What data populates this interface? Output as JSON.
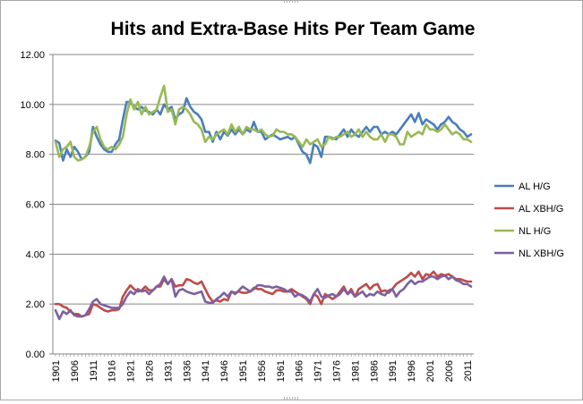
{
  "chart_data": {
    "type": "line",
    "title": "Hits and Extra-Base Hits Per Team Game",
    "xlabel": "",
    "ylabel": "",
    "ylim": [
      0,
      12
    ],
    "y_ticks": [
      "0.00",
      "2.00",
      "4.00",
      "6.00",
      "8.00",
      "10.00",
      "12.00"
    ],
    "x_tick_labels": [
      "1901",
      "1906",
      "1911",
      "1916",
      "1921",
      "1926",
      "1931",
      "1936",
      "1941",
      "1946",
      "1951",
      "1956",
      "1961",
      "1966",
      "1971",
      "1976",
      "1981",
      "1986",
      "1991",
      "1996",
      "2001",
      "2006",
      "2011"
    ],
    "grid": "horizontal",
    "legend_position": "right",
    "x_start": 1901,
    "x_end": 2012,
    "series": [
      {
        "name": "AL H/G",
        "color": "#4a7ebb",
        "values": [
          8.55,
          8.45,
          7.75,
          8.2,
          7.9,
          8.3,
          8.1,
          7.8,
          7.9,
          8.1,
          9.1,
          8.7,
          8.4,
          8.2,
          8.1,
          8.1,
          8.4,
          8.6,
          9.4,
          10.1,
          10.1,
          9.9,
          9.8,
          9.9,
          9.75,
          9.7,
          9.6,
          9.8,
          9.6,
          10.0,
          9.8,
          9.9,
          9.4,
          9.6,
          9.7,
          10.25,
          9.9,
          9.7,
          9.6,
          9.4,
          8.9,
          8.9,
          8.5,
          8.9,
          8.6,
          8.9,
          8.75,
          9.0,
          8.8,
          9.0,
          8.8,
          9.0,
          8.9,
          9.3,
          8.9,
          8.9,
          8.6,
          8.7,
          8.8,
          8.7,
          8.6,
          8.65,
          8.7,
          8.6,
          8.7,
          8.4,
          8.1,
          8.0,
          7.65,
          8.4,
          8.3,
          7.9,
          8.7,
          8.7,
          8.65,
          8.6,
          8.8,
          9.0,
          8.7,
          9.0,
          8.8,
          8.7,
          8.9,
          9.1,
          8.9,
          9.1,
          9.1,
          8.8,
          8.9,
          8.8,
          8.9,
          8.8,
          9.0,
          9.2,
          9.4,
          9.6,
          9.3,
          9.65,
          9.2,
          9.4,
          9.3,
          9.2,
          9.0,
          9.2,
          9.3,
          9.5,
          9.3,
          9.2,
          9.0,
          8.9,
          8.7,
          8.8
        ]
      },
      {
        "name": "AL XBH/G",
        "color": "#be4b48",
        "values": [
          2.0,
          2.0,
          1.9,
          1.85,
          1.7,
          1.6,
          1.6,
          1.5,
          1.55,
          1.6,
          2.0,
          1.95,
          1.85,
          1.75,
          1.7,
          1.75,
          1.75,
          1.8,
          2.3,
          2.55,
          2.75,
          2.6,
          2.5,
          2.55,
          2.7,
          2.55,
          2.55,
          2.7,
          2.7,
          3.0,
          2.8,
          3.0,
          2.7,
          2.75,
          2.75,
          3.0,
          2.95,
          2.85,
          2.8,
          2.9,
          2.6,
          2.3,
          2.1,
          2.15,
          2.1,
          2.2,
          2.15,
          2.5,
          2.45,
          2.5,
          2.45,
          2.45,
          2.5,
          2.65,
          2.6,
          2.6,
          2.5,
          2.45,
          2.4,
          2.55,
          2.55,
          2.5,
          2.5,
          2.6,
          2.5,
          2.4,
          2.3,
          2.2,
          2.0,
          2.4,
          2.3,
          2.0,
          2.4,
          2.3,
          2.2,
          2.3,
          2.5,
          2.7,
          2.4,
          2.6,
          2.3,
          2.6,
          2.7,
          2.8,
          2.6,
          2.75,
          2.8,
          2.5,
          2.55,
          2.45,
          2.6,
          2.8,
          2.9,
          3.0,
          3.1,
          3.25,
          3.1,
          3.3,
          3.0,
          3.2,
          3.15,
          3.3,
          3.1,
          3.2,
          3.15,
          3.2,
          3.1,
          3.0,
          3.0,
          2.95,
          2.9,
          2.9
        ]
      },
      {
        "name": "NL H/G",
        "color": "#98b954",
        "values": [
          8.5,
          7.9,
          8.2,
          8.3,
          8.5,
          7.9,
          7.75,
          7.8,
          7.9,
          8.3,
          8.9,
          9.1,
          8.6,
          8.3,
          8.2,
          8.3,
          8.2,
          8.4,
          8.7,
          9.6,
          10.2,
          9.8,
          10.1,
          9.6,
          9.9,
          9.6,
          9.7,
          9.8,
          10.3,
          10.75,
          9.7,
          9.8,
          9.2,
          9.8,
          9.9,
          9.8,
          9.6,
          9.3,
          9.2,
          9.0,
          8.5,
          8.7,
          8.6,
          8.8,
          8.9,
          9.0,
          8.8,
          9.2,
          8.9,
          9.1,
          8.8,
          9.1,
          9.0,
          9.0,
          8.9,
          9.0,
          8.8,
          8.7,
          8.75,
          9.0,
          8.9,
          8.9,
          8.8,
          8.8,
          8.7,
          8.5,
          8.3,
          8.6,
          8.4,
          8.5,
          8.6,
          8.3,
          8.4,
          8.7,
          8.6,
          8.7,
          8.7,
          8.8,
          8.9,
          8.7,
          8.8,
          9.0,
          8.7,
          8.9,
          8.7,
          8.6,
          8.6,
          8.8,
          8.5,
          8.8,
          8.8,
          8.7,
          8.4,
          8.4,
          8.9,
          8.7,
          8.8,
          8.9,
          8.8,
          9.2,
          9.0,
          9.0,
          8.9,
          9.0,
          9.2,
          9.0,
          8.8,
          8.9,
          8.8,
          8.6,
          8.6,
          8.5
        ]
      },
      {
        "name": "NL XBH/G",
        "color": "#7d60a0",
        "values": [
          1.75,
          1.4,
          1.7,
          1.6,
          1.75,
          1.55,
          1.5,
          1.5,
          1.55,
          1.8,
          2.1,
          2.2,
          2.0,
          1.95,
          1.9,
          1.85,
          1.85,
          1.85,
          2.0,
          2.3,
          2.5,
          2.4,
          2.6,
          2.5,
          2.55,
          2.4,
          2.55,
          2.7,
          2.8,
          3.1,
          2.8,
          3.0,
          2.3,
          2.55,
          2.6,
          2.5,
          2.45,
          2.4,
          2.45,
          2.5,
          2.1,
          2.05,
          2.05,
          2.2,
          2.3,
          2.45,
          2.3,
          2.5,
          2.4,
          2.55,
          2.7,
          2.6,
          2.5,
          2.6,
          2.75,
          2.75,
          2.7,
          2.7,
          2.65,
          2.7,
          2.65,
          2.6,
          2.5,
          2.5,
          2.3,
          2.4,
          2.35,
          2.25,
          2.1,
          2.4,
          2.6,
          2.3,
          2.25,
          2.35,
          2.4,
          2.3,
          2.4,
          2.6,
          2.4,
          2.5,
          2.3,
          2.4,
          2.5,
          2.3,
          2.4,
          2.35,
          2.5,
          2.4,
          2.35,
          2.55,
          2.6,
          2.3,
          2.5,
          2.6,
          2.8,
          2.95,
          2.8,
          2.9,
          2.9,
          3.0,
          3.1,
          3.1,
          3.0,
          3.1,
          3.15,
          3.0,
          3.1,
          2.95,
          2.9,
          2.8,
          2.8,
          2.7
        ]
      }
    ]
  }
}
